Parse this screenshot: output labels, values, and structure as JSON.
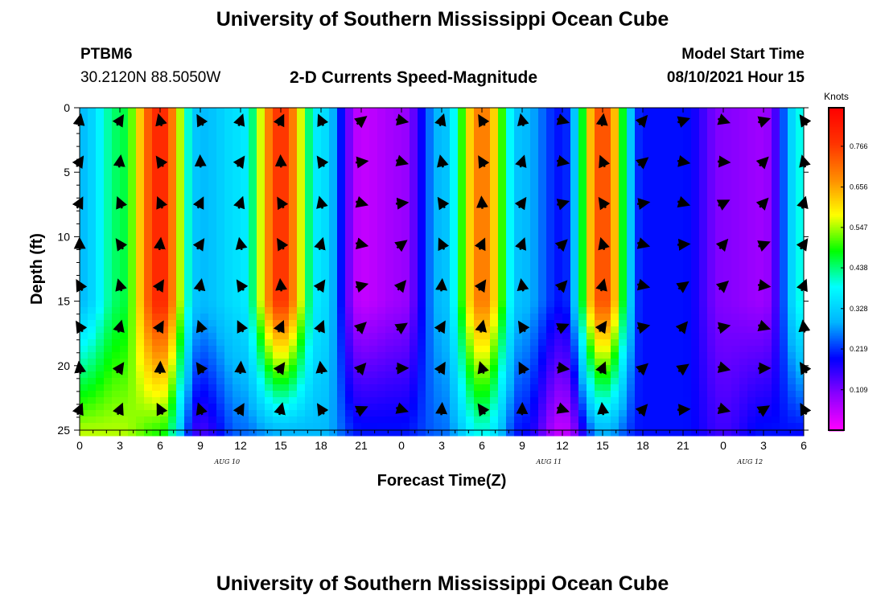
{
  "header": {
    "title": "University of Southern Mississippi Ocean Cube",
    "station_id": "PTBM6",
    "station_coords": "30.2120N  88.5050W",
    "subtitle": "2-D Currents Speed-Magnitude",
    "model_start_label": "Model Start Time",
    "model_start_value": "08/10/2021 Hour 15"
  },
  "footer": {
    "title": "University of Southern Mississippi Ocean Cube"
  },
  "chart_data": {
    "type": "heatmap",
    "title": "2-D Currents Speed-Magnitude",
    "xlabel": "Forecast Time(Z)",
    "ylabel": "Depth (ft)",
    "x_tick_labels": [
      "0",
      "3",
      "6",
      "9",
      "12",
      "15",
      "18",
      "21",
      "0",
      "3",
      "6",
      "9",
      "12",
      "15",
      "18",
      "21",
      "0",
      "3",
      "6"
    ],
    "x_date_labels": [
      {
        "label": "AUG 10",
        "at_hour": 11
      },
      {
        "label": "AUG 11",
        "at_hour": 35
      },
      {
        "label": "AUG 12",
        "at_hour": 50
      }
    ],
    "x_range_hours": [
      0,
      54
    ],
    "y_ticks": [
      0,
      5,
      10,
      15,
      20,
      25
    ],
    "ylim": [
      0,
      25
    ],
    "y_inverted": true,
    "colorbar": {
      "title": "Knots",
      "ticks": [
        0.766,
        0.656,
        0.547,
        0.438,
        0.328,
        0.219,
        0.109
      ],
      "range": [
        0.0,
        0.87
      ],
      "colors": [
        "#ff00ff",
        "#8a00ff",
        "#0000ff",
        "#00b4ff",
        "#00ffff",
        "#00ff00",
        "#ffff00",
        "#ff8c00",
        "#ff3300",
        "#ff0000"
      ]
    },
    "speed_profile_by_hour": [
      {
        "hour": 0,
        "top": 0.3,
        "bottom": 0.55
      },
      {
        "hour": 3,
        "top": 0.45,
        "bottom": 0.55
      },
      {
        "hour": 6,
        "top": 0.8,
        "bottom": 0.5
      },
      {
        "hour": 9,
        "top": 0.3,
        "bottom": 0.15
      },
      {
        "hour": 12,
        "top": 0.35,
        "bottom": 0.25
      },
      {
        "hour": 15,
        "top": 0.78,
        "bottom": 0.3
      },
      {
        "hour": 18,
        "top": 0.35,
        "bottom": 0.3
      },
      {
        "hour": 21,
        "top": 0.05,
        "bottom": 0.2
      },
      {
        "hour": 24,
        "top": 0.08,
        "bottom": 0.2
      },
      {
        "hour": 27,
        "top": 0.3,
        "bottom": 0.25
      },
      {
        "hour": 30,
        "top": 0.7,
        "bottom": 0.4
      },
      {
        "hour": 33,
        "top": 0.3,
        "bottom": 0.2
      },
      {
        "hour": 36,
        "top": 0.2,
        "bottom": 0.05
      },
      {
        "hour": 39,
        "top": 0.75,
        "bottom": 0.3
      },
      {
        "hour": 42,
        "top": 0.2,
        "bottom": 0.2
      },
      {
        "hour": 45,
        "top": 0.2,
        "bottom": 0.2
      },
      {
        "hour": 48,
        "top": 0.1,
        "bottom": 0.15
      },
      {
        "hour": 51,
        "top": 0.08,
        "bottom": 0.2
      },
      {
        "hour": 54,
        "top": 0.4,
        "bottom": 0.2
      }
    ]
  }
}
